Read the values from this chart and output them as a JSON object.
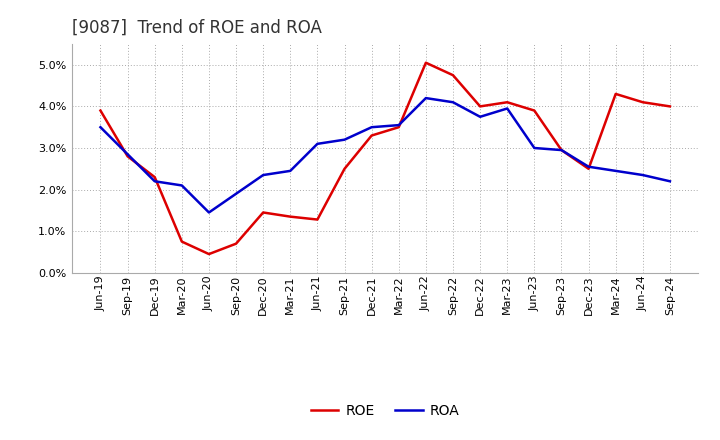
{
  "title": "[9087]  Trend of ROE and ROA",
  "labels": [
    "Jun-19",
    "Sep-19",
    "Dec-19",
    "Mar-20",
    "Jun-20",
    "Sep-20",
    "Dec-20",
    "Mar-21",
    "Jun-21",
    "Sep-21",
    "Dec-21",
    "Mar-22",
    "Jun-22",
    "Sep-22",
    "Dec-22",
    "Mar-23",
    "Jun-23",
    "Sep-23",
    "Dec-23",
    "Mar-24",
    "Jun-24",
    "Sep-24"
  ],
  "ROE": [
    3.9,
    2.8,
    2.3,
    0.75,
    0.45,
    0.7,
    1.45,
    1.35,
    1.28,
    2.5,
    3.3,
    3.5,
    5.05,
    4.75,
    4.0,
    4.1,
    3.9,
    2.95,
    2.5,
    4.3,
    4.1,
    4.0
  ],
  "ROA": [
    3.5,
    2.85,
    2.2,
    2.1,
    1.45,
    1.9,
    2.35,
    2.45,
    3.1,
    3.2,
    3.5,
    3.55,
    4.2,
    4.1,
    3.75,
    3.95,
    3.0,
    2.95,
    2.55,
    2.45,
    2.35,
    2.2
  ],
  "ROE_color": "#dd0000",
  "ROA_color": "#0000cc",
  "line_width": 1.8,
  "ylim": [
    0.0,
    5.5
  ],
  "yticks": [
    0.0,
    1.0,
    2.0,
    3.0,
    4.0,
    5.0
  ],
  "background_color": "#ffffff",
  "plot_bg_color": "#ffffff",
  "grid_color": "#aaaaaa",
  "title_fontsize": 12,
  "tick_fontsize": 8,
  "legend_fontsize": 10
}
